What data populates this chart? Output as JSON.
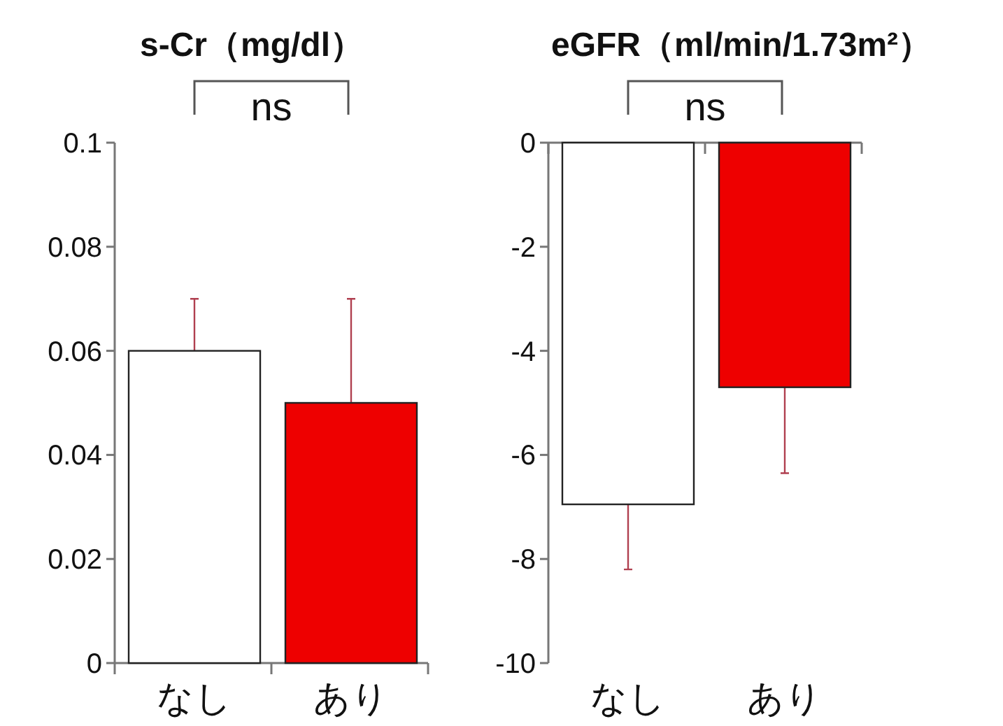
{
  "chart_data": [
    {
      "type": "bar",
      "title": "s-Cr（mg/dl）",
      "categories": [
        "なし",
        "あり"
      ],
      "values": [
        0.06,
        0.05
      ],
      "colors": [
        "#ffffff",
        "#ee0000"
      ],
      "errors": [
        [
          0.06,
          0.07
        ],
        [
          0.05,
          0.07
        ]
      ],
      "ylim": [
        0,
        0.1
      ],
      "yticks": [
        0,
        0.02,
        0.04,
        0.06,
        0.08,
        0.1
      ],
      "annotations": [
        "ns"
      ]
    },
    {
      "type": "bar",
      "title": "eGFR（ml/min/1.73m²）",
      "categories": [
        "なし",
        "あり"
      ],
      "values": [
        -6.95,
        -4.7
      ],
      "colors": [
        "#ffffff",
        "#ee0000"
      ],
      "errors": [
        [
          -8.2,
          -6.95
        ],
        [
          -6.35,
          -4.7
        ]
      ],
      "ylim": [
        -10,
        0
      ],
      "yticks": [
        -10,
        -8,
        -6,
        -4,
        -2,
        0
      ],
      "annotations": [
        "ns"
      ]
    }
  ]
}
